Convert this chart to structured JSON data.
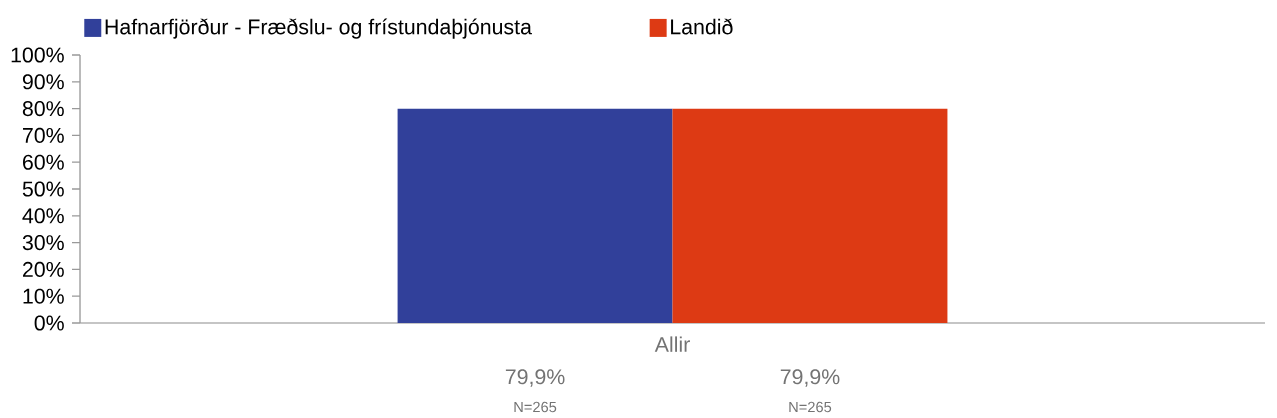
{
  "chart_data": {
    "type": "bar",
    "categories": [
      "Allir"
    ],
    "series": [
      {
        "name": "Hafnarfjörður - Fræðslu- og frístundaþjónusta",
        "color": "#31409a",
        "values": [
          79.9
        ],
        "value_labels": [
          "79,9%"
        ]
      },
      {
        "name": "Landið",
        "color": "#dd3a14",
        "values": [
          79.9
        ],
        "value_labels": [
          "79,9%"
        ]
      }
    ],
    "ylim": [
      0,
      100
    ],
    "yticks": [
      {
        "value": 0,
        "label": "0%"
      },
      {
        "value": 10,
        "label": "10%"
      },
      {
        "value": 20,
        "label": "20%"
      },
      {
        "value": 30,
        "label": "30%"
      },
      {
        "value": 40,
        "label": "40%"
      },
      {
        "value": 50,
        "label": "50%"
      },
      {
        "value": 60,
        "label": "60%"
      },
      {
        "value": 70,
        "label": "70%"
      },
      {
        "value": 80,
        "label": "80%"
      },
      {
        "value": 90,
        "label": "90%"
      },
      {
        "value": 100,
        "label": "100%"
      }
    ],
    "legend": "top left",
    "grid": false,
    "annotations": [
      "N=265",
      "N=265"
    ]
  }
}
